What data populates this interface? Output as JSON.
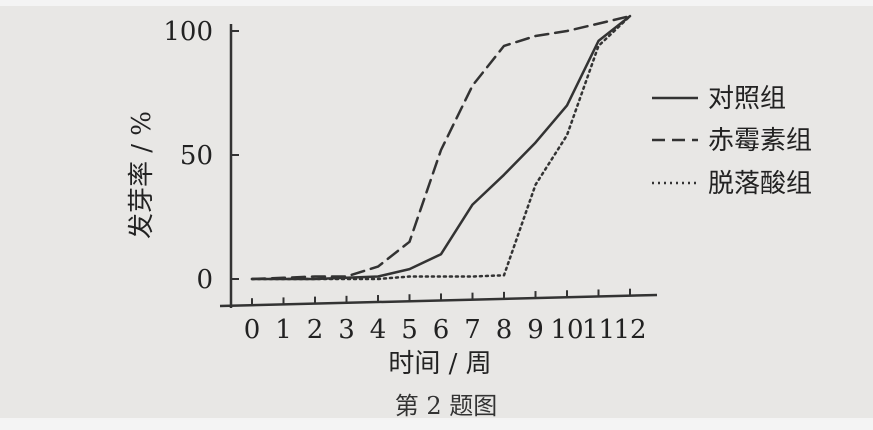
{
  "chart_data": {
    "type": "line",
    "xlabel": "时间 / 周",
    "ylabel": "发芽率 / %",
    "caption": "第 2 题图",
    "x_ticks": [
      "0",
      "1",
      "2",
      "3",
      "4",
      "5",
      "6",
      "7",
      "8",
      "9",
      "10",
      "11",
      "12"
    ],
    "y_ticks": [
      "0",
      "50",
      "100"
    ],
    "xlim": [
      0,
      12
    ],
    "ylim": [
      0,
      100
    ],
    "grid": false,
    "legend_position": "right",
    "series": [
      {
        "name": "对照组",
        "style": "solid",
        "x": [
          0,
          1,
          2,
          3,
          4,
          5,
          6,
          7,
          8,
          9,
          10,
          11,
          12
        ],
        "y": [
          0,
          0,
          0,
          0.5,
          1,
          4,
          10,
          30,
          42,
          55,
          70,
          96,
          106
        ]
      },
      {
        "name": "赤霉素组",
        "style": "dashed",
        "x": [
          0,
          1,
          2,
          3,
          4,
          5,
          6,
          7,
          8,
          9,
          10,
          11,
          12
        ],
        "y": [
          0,
          0.5,
          1,
          1,
          5,
          15,
          52,
          78,
          94,
          98,
          100,
          103,
          106
        ]
      },
      {
        "name": "脱落酸组",
        "style": "dotted",
        "x": [
          0,
          1,
          2,
          3,
          4,
          5,
          6,
          7,
          8,
          9,
          10,
          11,
          12
        ],
        "y": [
          0,
          0,
          0,
          0,
          0,
          1,
          1,
          1,
          1.5,
          38,
          58,
          94,
          106
        ]
      }
    ]
  },
  "colors": {
    "ink": "#333333",
    "background": "#e8e7e5"
  }
}
